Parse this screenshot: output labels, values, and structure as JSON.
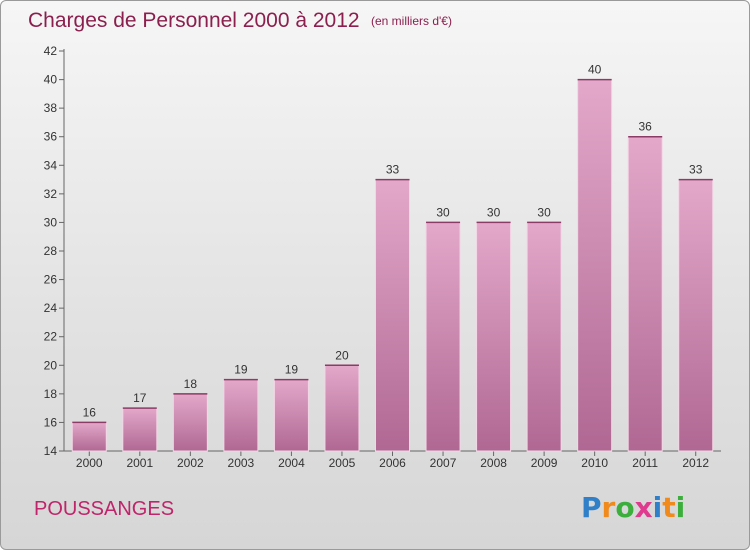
{
  "chart_data": {
    "type": "bar",
    "title": "Charges de Personnel 2000 à 2012",
    "subtitle": "(en milliers d'€)",
    "categories": [
      "2000",
      "2001",
      "2002",
      "2003",
      "2004",
      "2005",
      "2006",
      "2007",
      "2008",
      "2009",
      "2010",
      "2011",
      "2012"
    ],
    "values": [
      16,
      17,
      18,
      19,
      19,
      20,
      33,
      30,
      30,
      30,
      40,
      36,
      33
    ],
    "ylim": [
      14,
      42
    ],
    "yticks": [
      14,
      16,
      18,
      20,
      22,
      24,
      26,
      28,
      30,
      32,
      34,
      36,
      38,
      40,
      42
    ],
    "grid": false,
    "bar_color": "#d98fb8"
  },
  "place_name": "POUSSANGES",
  "logo": {
    "letters": [
      "P",
      "r",
      "o",
      "x",
      "i",
      "t",
      "i"
    ],
    "colors": [
      "#2f80c8",
      "#f08a1c",
      "#3cae3c",
      "#e03a8e",
      "#2f80c8",
      "#f08a1c",
      "#3cae3c"
    ]
  }
}
